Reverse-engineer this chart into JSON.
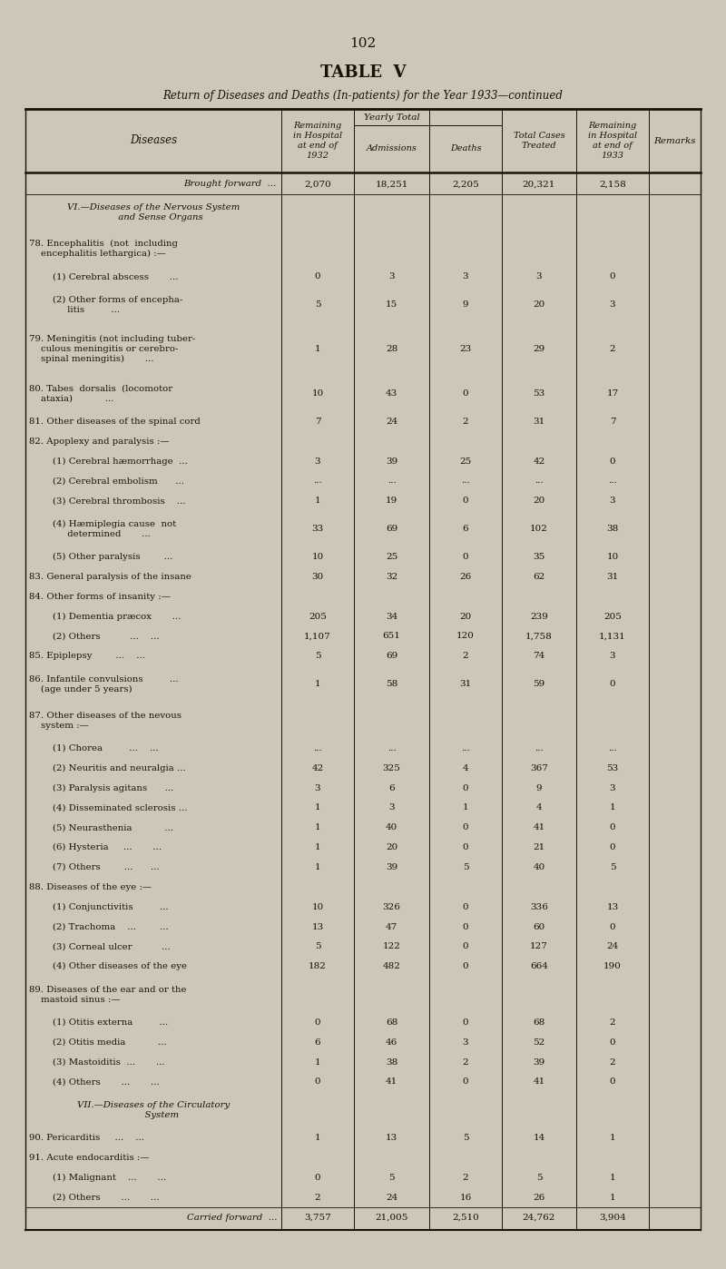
{
  "page_number": "102",
  "title": "TABLE  V",
  "subtitle": "Return of Diseases and Deaths (In-patients) for the Year 1933—continued",
  "bg_color": "#cdc7b8",
  "text_color": "#1a1008",
  "rows": [
    {
      "label": "Brought forward  ...",
      "italic": true,
      "forward": true,
      "v1932": "2,070",
      "adm": "18,251",
      "deaths": "2,205",
      "total": "20,321",
      "v1933": "2,158",
      "lines": 1
    },
    {
      "label": "VI.—Diseases of the Nervous System\n     and Sense Organs",
      "italic": true,
      "section": true,
      "v1932": "",
      "adm": "",
      "deaths": "",
      "total": "",
      "v1933": "",
      "lines": 2
    },
    {
      "label": "78. Encephalitis  (not  including\n    encephalitis lethargica) :—",
      "italic": false,
      "v1932": "",
      "adm": "",
      "deaths": "",
      "total": "",
      "v1933": "",
      "lines": 2
    },
    {
      "label": "        (1) Cerebral abscess       ...",
      "italic": false,
      "v1932": "0",
      "adm": "3",
      "deaths": "3",
      "total": "3",
      "v1933": "0",
      "lines": 1
    },
    {
      "label": "        (2) Other forms of encepha-\n             litis         ...",
      "italic": false,
      "v1932": "5",
      "adm": "15",
      "deaths": "9",
      "total": "20",
      "v1933": "3",
      "lines": 2
    },
    {
      "label": "79. Meningitis (not including tuber-\n    culous meningitis or cerebro-\n    spinal meningitis)       ...",
      "italic": false,
      "v1932": "1",
      "adm": "28",
      "deaths": "23",
      "total": "29",
      "v1933": "2",
      "lines": 3
    },
    {
      "label": "80. Tabes  dorsalis  (locomotor\n    ataxia)           ...",
      "italic": false,
      "v1932": "10",
      "adm": "43",
      "deaths": "0",
      "total": "53",
      "v1933": "17",
      "lines": 2
    },
    {
      "label": "81. Other diseases of the spinal cord",
      "italic": false,
      "v1932": "7",
      "adm": "24",
      "deaths": "2",
      "total": "31",
      "v1933": "7",
      "lines": 1
    },
    {
      "label": "82. Apoplexy and paralysis :—",
      "italic": false,
      "v1932": "",
      "adm": "",
      "deaths": "",
      "total": "",
      "v1933": "",
      "lines": 1
    },
    {
      "label": "        (1) Cerebral hæmorrhage  ...",
      "italic": false,
      "v1932": "3",
      "adm": "39",
      "deaths": "25",
      "total": "42",
      "v1933": "0",
      "lines": 1
    },
    {
      "label": "        (2) Cerebral embolism      ...",
      "italic": false,
      "v1932": "...",
      "adm": "...",
      "deaths": "...",
      "total": "...",
      "v1933": "...",
      "lines": 1
    },
    {
      "label": "        (3) Cerebral thrombosis    ...",
      "italic": false,
      "v1932": "1",
      "adm": "19",
      "deaths": "0",
      "total": "20",
      "v1933": "3",
      "lines": 1
    },
    {
      "label": "        (4) Hæmiplegia cause  not\n             determined       ...",
      "italic": false,
      "v1932": "33",
      "adm": "69",
      "deaths": "6",
      "total": "102",
      "v1933": "38",
      "lines": 2
    },
    {
      "label": "        (5) Other paralysis        ...",
      "italic": false,
      "v1932": "10",
      "adm": "25",
      "deaths": "0",
      "total": "35",
      "v1933": "10",
      "lines": 1
    },
    {
      "label": "83. General paralysis of the insane",
      "italic": false,
      "v1932": "30",
      "adm": "32",
      "deaths": "26",
      "total": "62",
      "v1933": "31",
      "lines": 1
    },
    {
      "label": "84. Other forms of insanity :—",
      "italic": false,
      "v1932": "",
      "adm": "",
      "deaths": "",
      "total": "",
      "v1933": "",
      "lines": 1
    },
    {
      "label": "        (1) Dementia præcox       ...",
      "italic": false,
      "v1932": "205",
      "adm": "34",
      "deaths": "20",
      "total": "239",
      "v1933": "205",
      "lines": 1
    },
    {
      "label": "        (2) Others          ...    ...",
      "italic": false,
      "v1932": "1,107",
      "adm": "651",
      "deaths": "120",
      "total": "1,758",
      "v1933": "1,131",
      "lines": 1
    },
    {
      "label": "85. Epiplepsy        ...    ...",
      "italic": false,
      "v1932": "5",
      "adm": "69",
      "deaths": "2",
      "total": "74",
      "v1933": "3",
      "lines": 1
    },
    {
      "label": "86. Infantile convulsions         ...\n    (age under 5 years)",
      "italic": false,
      "v1932": "1",
      "adm": "58",
      "deaths": "31",
      "total": "59",
      "v1933": "0",
      "lines": 2
    },
    {
      "label": "87. Other diseases of the nevous\n    system :—",
      "italic": false,
      "v1932": "",
      "adm": "",
      "deaths": "",
      "total": "",
      "v1933": "",
      "lines": 2
    },
    {
      "label": "        (1) Chorea         ...    ...",
      "italic": false,
      "v1932": "...",
      "adm": "...",
      "deaths": "...",
      "total": "...",
      "v1933": "...",
      "lines": 1
    },
    {
      "label": "        (2) Neuritis and neuralgia ...",
      "italic": false,
      "v1932": "42",
      "adm": "325",
      "deaths": "4",
      "total": "367",
      "v1933": "53",
      "lines": 1
    },
    {
      "label": "        (3) Paralysis agitans      ...",
      "italic": false,
      "v1932": "3",
      "adm": "6",
      "deaths": "0",
      "total": "9",
      "v1933": "3",
      "lines": 1
    },
    {
      "label": "        (4) Disseminated sclerosis ...",
      "italic": false,
      "v1932": "1",
      "adm": "3",
      "deaths": "1",
      "total": "4",
      "v1933": "1",
      "lines": 1
    },
    {
      "label": "        (5) Neurasthenia           ...",
      "italic": false,
      "v1932": "1",
      "adm": "40",
      "deaths": "0",
      "total": "41",
      "v1933": "0",
      "lines": 1
    },
    {
      "label": "        (6) Hysteria     ...       ...",
      "italic": false,
      "v1932": "1",
      "adm": "20",
      "deaths": "0",
      "total": "21",
      "v1933": "0",
      "lines": 1
    },
    {
      "label": "        (7) Others        ...      ...",
      "italic": false,
      "v1932": "1",
      "adm": "39",
      "deaths": "5",
      "total": "40",
      "v1933": "5",
      "lines": 1
    },
    {
      "label": "88. Diseases of the eye :—",
      "italic": false,
      "v1932": "",
      "adm": "",
      "deaths": "",
      "total": "",
      "v1933": "",
      "lines": 1
    },
    {
      "label": "        (1) Conjunctivitis         ...",
      "italic": false,
      "v1932": "10",
      "adm": "326",
      "deaths": "0",
      "total": "336",
      "v1933": "13",
      "lines": 1
    },
    {
      "label": "        (2) Trachoma    ...        ...",
      "italic": false,
      "v1932": "13",
      "adm": "47",
      "deaths": "0",
      "total": "60",
      "v1933": "0",
      "lines": 1
    },
    {
      "label": "        (3) Corneal ulcer          ...",
      "italic": false,
      "v1932": "5",
      "adm": "122",
      "deaths": "0",
      "total": "127",
      "v1933": "24",
      "lines": 1
    },
    {
      "label": "        (4) Other diseases of the eye",
      "italic": false,
      "v1932": "182",
      "adm": "482",
      "deaths": "0",
      "total": "664",
      "v1933": "190",
      "lines": 1
    },
    {
      "label": "89. Diseases of the ear and or the\n    mastoid sinus :—",
      "italic": false,
      "v1932": "",
      "adm": "",
      "deaths": "",
      "total": "",
      "v1933": "",
      "lines": 2
    },
    {
      "label": "        (1) Otitis externa         ...",
      "italic": false,
      "v1932": "0",
      "adm": "68",
      "deaths": "0",
      "total": "68",
      "v1933": "2",
      "lines": 1
    },
    {
      "label": "        (2) Otitis media           ...",
      "italic": false,
      "v1932": "6",
      "adm": "46",
      "deaths": "3",
      "total": "52",
      "v1933": "0",
      "lines": 1
    },
    {
      "label": "        (3) Mastoiditis  ...       ...",
      "italic": false,
      "v1932": "1",
      "adm": "38",
      "deaths": "2",
      "total": "39",
      "v1933": "2",
      "lines": 1
    },
    {
      "label": "        (4) Others       ...       ...",
      "italic": false,
      "v1932": "0",
      "adm": "41",
      "deaths": "0",
      "total": "41",
      "v1933": "0",
      "lines": 1
    },
    {
      "label": "VII.—Diseases of the Circulatory\n      System",
      "italic": true,
      "section": true,
      "v1932": "",
      "adm": "",
      "deaths": "",
      "total": "",
      "v1933": "",
      "lines": 2
    },
    {
      "label": "90. Pericarditis     ...    ...",
      "italic": false,
      "v1932": "1",
      "adm": "13",
      "deaths": "5",
      "total": "14",
      "v1933": "1",
      "lines": 1
    },
    {
      "label": "91. Acute endocarditis :—",
      "italic": false,
      "v1932": "",
      "adm": "",
      "deaths": "",
      "total": "",
      "v1933": "",
      "lines": 1
    },
    {
      "label": "        (1) Malignant    ...       ...",
      "italic": false,
      "v1932": "0",
      "adm": "5",
      "deaths": "2",
      "total": "5",
      "v1933": "1",
      "lines": 1
    },
    {
      "label": "        (2) Others       ...       ...",
      "italic": false,
      "v1932": "2",
      "adm": "24",
      "deaths": "16",
      "total": "26",
      "v1933": "1",
      "lines": 1
    },
    {
      "label": "Carried forward  ...",
      "italic": true,
      "forward": true,
      "v1932": "3,757",
      "adm": "21,005",
      "deaths": "2,510",
      "total": "24,762",
      "v1933": "3,904",
      "lines": 1
    }
  ]
}
